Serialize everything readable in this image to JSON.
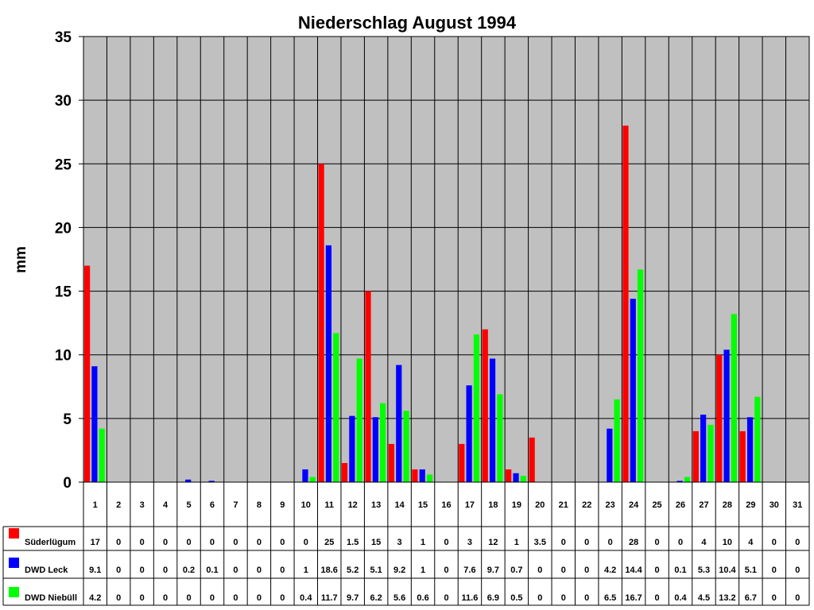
{
  "chart_data": {
    "type": "bar",
    "title": "Niederschlag August 1994",
    "ylabel": "mm",
    "xlabel": "",
    "ylim": [
      0,
      35
    ],
    "yticks": [
      0,
      5,
      10,
      15,
      20,
      25,
      30,
      35
    ],
    "grid": true,
    "legend": "data-table-left",
    "categories": [
      "1",
      "2",
      "3",
      "4",
      "5",
      "6",
      "7",
      "8",
      "9",
      "10",
      "11",
      "12",
      "13",
      "14",
      "15",
      "16",
      "17",
      "18",
      "19",
      "20",
      "21",
      "22",
      "23",
      "24",
      "25",
      "26",
      "27",
      "28",
      "29",
      "30",
      "31"
    ],
    "series": [
      {
        "name": "Süderlügum",
        "color": "#ff0000",
        "values": [
          17,
          0,
          0,
          0,
          0,
          0,
          0,
          0,
          0,
          0,
          25,
          1.5,
          15,
          3,
          1,
          0,
          3,
          12,
          1,
          3.5,
          0,
          0,
          0,
          28,
          0,
          0,
          4,
          10,
          4,
          0,
          0
        ]
      },
      {
        "name": "DWD Leck",
        "color": "#0000ff",
        "values": [
          9.1,
          0,
          0,
          0,
          0.2,
          0.1,
          0,
          0,
          0,
          1,
          18.6,
          5.2,
          5.1,
          9.2,
          1,
          0,
          7.6,
          9.7,
          0.7,
          0,
          0,
          0,
          4.2,
          14.4,
          0,
          0.1,
          5.3,
          10.4,
          5.1,
          0,
          0
        ]
      },
      {
        "name": "DWD Niebüll",
        "color": "#00ff00",
        "values": [
          4.2,
          0,
          0,
          0,
          0,
          0,
          0,
          0,
          0,
          0.4,
          11.7,
          9.7,
          6.2,
          5.6,
          0.6,
          0,
          11.6,
          6.9,
          0.5,
          0,
          0,
          0,
          6.5,
          16.7,
          0,
          0.4,
          4.5,
          13.2,
          6.7,
          0,
          0
        ]
      }
    ]
  },
  "colors": {
    "plot_background": "#c0c0c0",
    "page_background": "#ffffff",
    "grid": "#000000"
  }
}
